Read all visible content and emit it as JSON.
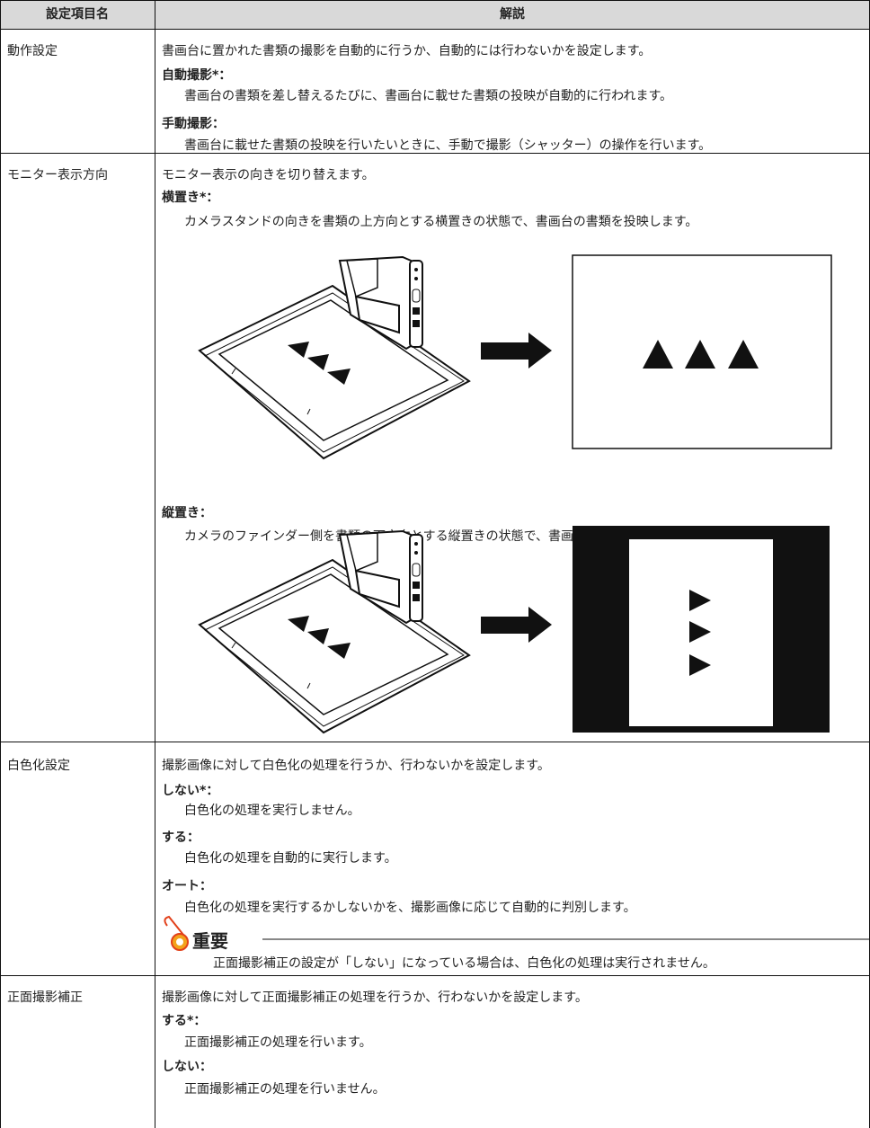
{
  "table": {
    "header": [
      "設定項目名",
      "解説"
    ],
    "rows": [
      {
        "name": "動作設定",
        "intro": "書画台に置かれた書類の撮影を自動的に行うか、自動的には行わないかを設定します。",
        "options": [
          {
            "label": "自動撮影*：",
            "text": "書画台の書類を差し替えるたびに、書画台に載せた書類の投映が自動的に行われます。"
          },
          {
            "label": "手動撮影：",
            "text": "書画台に載せた書類の投映を行いたいときに、手動で撮影（シャッター）の操作を行います。"
          }
        ]
      },
      {
        "name": "モニター表示方向",
        "intro": "モニター表示の向きを切り替えます。",
        "options": [
          {
            "label": "横置き*：",
            "text": "カメラスタンドの向きを書類の上方向とする横置きの状態で、書画台の書類を投映します。"
          },
          {
            "label": "縦置き：",
            "text": "カメラのファインダー側を書類の下方向とする縦置きの状態で、書画台の書類を投映します。"
          }
        ]
      },
      {
        "name": "白色化設定",
        "intro": "撮影画像に対して白色化の処理を行うか、行わないかを設定します。",
        "options": [
          {
            "label": "しない*：",
            "text": "白色化の処理を実行しません。"
          },
          {
            "label": "する：",
            "text": "白色化の処理を自動的に実行します。"
          },
          {
            "label": "オート：",
            "text": "白色化の処理を実行するかしないかを、撮影画像に応じて自動的に判別します。"
          }
        ],
        "note": {
          "title": "重要",
          "text": "正面撮影補正の設定が「しない」になっている場合は、白色化の処理は実行されません。"
        }
      },
      {
        "name": "正面撮影補正",
        "intro": "撮影画像に対して正面撮影補正の処理を行うか、行わないかを設定します。",
        "options": [
          {
            "label": "する*：",
            "text": "正面撮影補正の処理を行います。"
          },
          {
            "label": "しない：",
            "text": "正面撮影補正の処理を行いません。"
          }
        ]
      }
    ]
  }
}
